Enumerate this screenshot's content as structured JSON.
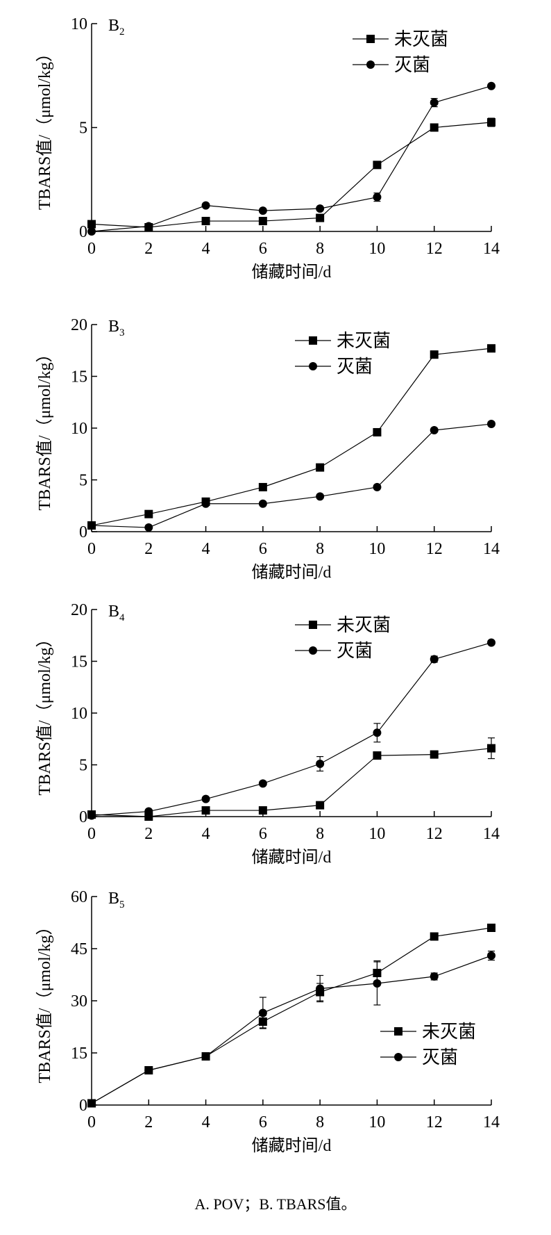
{
  "caption": "A. POV；B. TBARS值。",
  "chart_data": [
    {
      "type": "line",
      "title": "B",
      "title_sub": "2",
      "xlabel": "储藏时间/d",
      "ylabel": "TBARS值/（μmol/kg）",
      "x": [
        0,
        2,
        4,
        6,
        8,
        10,
        12,
        14
      ],
      "xlim": [
        0,
        14
      ],
      "ylim": [
        0,
        10
      ],
      "xticks": [
        "0",
        "2",
        "4",
        "6",
        "8",
        "10",
        "12",
        "14"
      ],
      "yticks": [
        "0",
        "5",
        "10"
      ],
      "ytick_values": [
        0,
        5,
        10
      ],
      "legend": "top-right",
      "series": [
        {
          "name": "未灭菌",
          "marker": "square",
          "values": [
            0.35,
            0.2,
            0.5,
            0.5,
            0.65,
            3.2,
            5.0,
            5.25
          ],
          "errors": [
            0.05,
            0.05,
            0.05,
            0.05,
            0.05,
            0.1,
            0.1,
            0.2
          ]
        },
        {
          "name": "灭菌",
          "marker": "circle",
          "values": [
            0.0,
            0.25,
            1.25,
            1.0,
            1.1,
            1.65,
            6.2,
            7.0
          ],
          "errors": [
            0.02,
            0.05,
            0.05,
            0.05,
            0.05,
            0.2,
            0.2,
            0.05
          ]
        }
      ]
    },
    {
      "type": "line",
      "title": "B",
      "title_sub": "3",
      "xlabel": "储藏时间/d",
      "ylabel": "TBARS值/（μmol/kg）",
      "x": [
        0,
        2,
        4,
        6,
        8,
        10,
        12,
        14
      ],
      "xlim": [
        0,
        14
      ],
      "ylim": [
        0,
        20
      ],
      "xticks": [
        "0",
        "2",
        "4",
        "6",
        "8",
        "10",
        "12",
        "14"
      ],
      "yticks": [
        "0",
        "5",
        "10",
        "15",
        "20"
      ],
      "ytick_values": [
        0,
        5,
        10,
        15,
        20
      ],
      "legend": "top-right",
      "series": [
        {
          "name": "未灭菌",
          "marker": "square",
          "values": [
            0.6,
            1.7,
            2.9,
            4.3,
            6.2,
            9.6,
            17.1,
            17.7
          ],
          "errors": [
            0.1,
            0.1,
            0.1,
            0.1,
            0.1,
            0.15,
            0.35,
            0.35
          ]
        },
        {
          "name": "灭菌",
          "marker": "circle",
          "values": [
            0.6,
            0.4,
            2.7,
            2.7,
            3.4,
            4.3,
            9.8,
            10.4
          ],
          "errors": [
            0.1,
            0.1,
            0.1,
            0.1,
            0.1,
            0.1,
            0.1,
            0.2
          ]
        }
      ]
    },
    {
      "type": "line",
      "title": "B",
      "title_sub": "4",
      "xlabel": "储藏时间/d",
      "ylabel": "TBARS值/（μmol/kg）",
      "x": [
        0,
        2,
        4,
        6,
        8,
        10,
        12,
        14
      ],
      "xlim": [
        0,
        14
      ],
      "ylim": [
        0,
        20
      ],
      "xticks": [
        "0",
        "2",
        "4",
        "6",
        "8",
        "10",
        "12",
        "14"
      ],
      "yticks": [
        "0",
        "5",
        "10",
        "15",
        "20"
      ],
      "ytick_values": [
        0,
        5,
        10,
        15,
        20
      ],
      "legend": "top-right",
      "series": [
        {
          "name": "未灭菌",
          "marker": "square",
          "values": [
            0.2,
            0.0,
            0.6,
            0.6,
            1.1,
            5.9,
            6.0,
            6.6
          ],
          "errors": [
            0.05,
            0.05,
            0.05,
            0.05,
            0.1,
            0.15,
            0.15,
            1.0
          ]
        },
        {
          "name": "灭菌",
          "marker": "circle",
          "values": [
            0.1,
            0.5,
            1.7,
            3.2,
            5.1,
            8.1,
            15.2,
            16.8
          ],
          "errors": [
            0.05,
            0.1,
            0.1,
            0.2,
            0.7,
            0.9,
            0.3,
            0.2
          ]
        }
      ]
    },
    {
      "type": "line",
      "title": "B",
      "title_sub": "5",
      "xlabel": "储藏时间/d",
      "ylabel": "TBARS值/（μmol/kg）",
      "x": [
        0,
        2,
        4,
        6,
        8,
        10,
        12,
        14
      ],
      "xlim": [
        0,
        14
      ],
      "ylim": [
        0,
        60
      ],
      "xticks": [
        "0",
        "2",
        "4",
        "6",
        "8",
        "10",
        "12",
        "14"
      ],
      "yticks": [
        "0",
        "15",
        "30",
        "45",
        "60"
      ],
      "ytick_values": [
        0,
        15,
        30,
        45,
        60
      ],
      "legend": "center-right",
      "series": [
        {
          "name": "未灭菌",
          "marker": "square",
          "values": [
            0.5,
            10,
            14,
            24,
            32.5,
            38,
            48.5,
            51
          ],
          "errors": [
            0.3,
            0.5,
            0.5,
            1.8,
            2.5,
            3.5,
            0.6,
            0.6
          ]
        },
        {
          "name": "灭菌",
          "marker": "circle",
          "values": [
            0.5,
            10,
            14,
            26.5,
            33.5,
            35,
            37,
            43
          ],
          "errors": [
            0.3,
            0.5,
            0.5,
            4.5,
            3.8,
            6.2,
            1.0,
            1.3
          ]
        }
      ]
    }
  ]
}
